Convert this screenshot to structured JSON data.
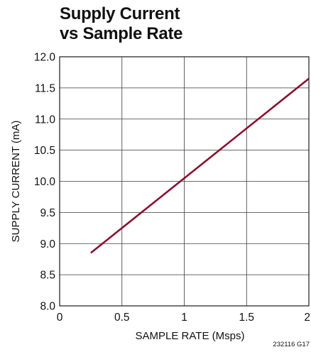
{
  "chart_data": {
    "type": "line",
    "title": [
      "Supply Current",
      "vs Sample Rate"
    ],
    "xlabel": "SAMPLE RATE (Msps)",
    "ylabel": "SUPPLY CURRENT (mA)",
    "xlim": [
      0,
      2
    ],
    "ylim": [
      8.0,
      12.0
    ],
    "x_ticks": [
      "0",
      "0.5",
      "1",
      "1.5",
      "2"
    ],
    "y_ticks": [
      "8.0",
      "8.5",
      "9.0",
      "9.5",
      "10.0",
      "10.5",
      "11.0",
      "11.5",
      "12.0"
    ],
    "grid": true,
    "series": [
      {
        "x": [
          0.25,
          2.0
        ],
        "y": [
          8.85,
          11.65
        ],
        "color": "#8a0f2e"
      }
    ],
    "figure_id": "232116 G17"
  }
}
